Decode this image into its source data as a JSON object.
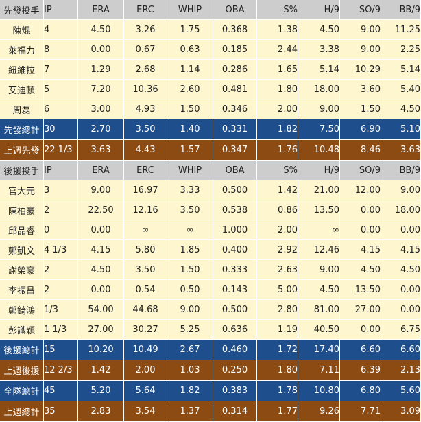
{
  "colors": {
    "header_bg": "#cdcdcd",
    "row_bg": "#fdf6cf",
    "total_blue": "#1f4e8c",
    "total_brown": "#8c4b12"
  },
  "headers": {
    "starters": [
      "先發投手",
      "IP",
      "ERA",
      "ERC",
      "WHIP",
      "OBA",
      "S%",
      "H/9",
      "SO/9",
      "BB/9"
    ],
    "relievers": [
      "後援投手",
      "IP",
      "ERA",
      "ERC",
      "WHIP",
      "OBA",
      "S%",
      "H/9",
      "SO/9",
      "BB/9"
    ]
  },
  "starters": [
    [
      "陳焜",
      "4",
      "4.50",
      "3.26",
      "1.75",
      "0.368",
      "1.38",
      "4.50",
      "9.00",
      "11.25"
    ],
    [
      "萊福力",
      "8",
      "0.00",
      "0.67",
      "0.63",
      "0.185",
      "2.44",
      "3.38",
      "9.00",
      "2.25"
    ],
    [
      "紐維拉",
      "7",
      "1.29",
      "2.68",
      "1.14",
      "0.286",
      "1.65",
      "5.14",
      "10.29",
      "5.14"
    ],
    [
      "艾迪頓",
      "5",
      "7.20",
      "10.36",
      "2.60",
      "0.481",
      "1.80",
      "18.00",
      "3.60",
      "5.40"
    ],
    [
      "周磊",
      "6",
      "3.00",
      "4.93",
      "1.50",
      "0.346",
      "2.00",
      "9.00",
      "1.50",
      "4.50"
    ]
  ],
  "starter_total": [
    "先發總計",
    "30",
    "2.70",
    "3.50",
    "1.40",
    "0.331",
    "1.82",
    "7.50",
    "6.90",
    "5.10"
  ],
  "starter_last_week": [
    "上週先發",
    "22 1/3",
    "3.63",
    "4.43",
    "1.57",
    "0.347",
    "1.76",
    "10.48",
    "8.46",
    "3.63"
  ],
  "relievers": [
    [
      "官大元",
      "3",
      "9.00",
      "16.97",
      "3.33",
      "0.500",
      "1.42",
      "21.00",
      "12.00",
      "9.00"
    ],
    [
      "陳柏豪",
      "2",
      "22.50",
      "12.16",
      "3.50",
      "0.538",
      "0.86",
      "13.50",
      "0.00",
      "18.00"
    ],
    [
      "邱品睿",
      "0",
      "0.00",
      "∞",
      "∞",
      "1.000",
      "2.00",
      "∞",
      "0.00",
      "0.00"
    ],
    [
      "鄭凱文",
      "4 1/3",
      "4.15",
      "5.80",
      "1.85",
      "0.400",
      "2.92",
      "12.46",
      "4.15",
      "4.15"
    ],
    [
      "謝榮豪",
      "2",
      "4.50",
      "3.50",
      "1.50",
      "0.333",
      "2.63",
      "9.00",
      "4.50",
      "4.50"
    ],
    [
      "李振昌",
      "2",
      "0.00",
      "0.54",
      "0.50",
      "0.143",
      "5.00",
      "4.50",
      "13.50",
      "0.00"
    ],
    [
      "鄭錡鴻",
      "1/3",
      "54.00",
      "44.68",
      "9.00",
      "0.500",
      "2.80",
      "81.00",
      "27.00",
      "0.00"
    ],
    [
      "彭識穎",
      "1 1/3",
      "27.00",
      "30.27",
      "5.25",
      "0.636",
      "1.19",
      "40.50",
      "0.00",
      "6.75"
    ]
  ],
  "totals": [
    {
      "style": "blue",
      "cells": [
        "後援總計",
        "15",
        "10.20",
        "10.49",
        "2.67",
        "0.460",
        "1.72",
        "17.40",
        "6.60",
        "6.60"
      ]
    },
    {
      "style": "brown",
      "cells": [
        "上週後援",
        "12 2/3",
        "1.42",
        "2.00",
        "1.03",
        "0.250",
        "1.80",
        "7.11",
        "6.39",
        "2.13"
      ]
    },
    {
      "style": "blue",
      "cells": [
        "全隊總計",
        "45",
        "5.20",
        "5.64",
        "1.82",
        "0.383",
        "1.78",
        "10.80",
        "6.80",
        "5.60"
      ]
    },
    {
      "style": "brown",
      "cells": [
        "上週總計",
        "35",
        "2.83",
        "3.54",
        "1.37",
        "0.314",
        "1.77",
        "9.26",
        "7.71",
        "3.09"
      ]
    }
  ]
}
